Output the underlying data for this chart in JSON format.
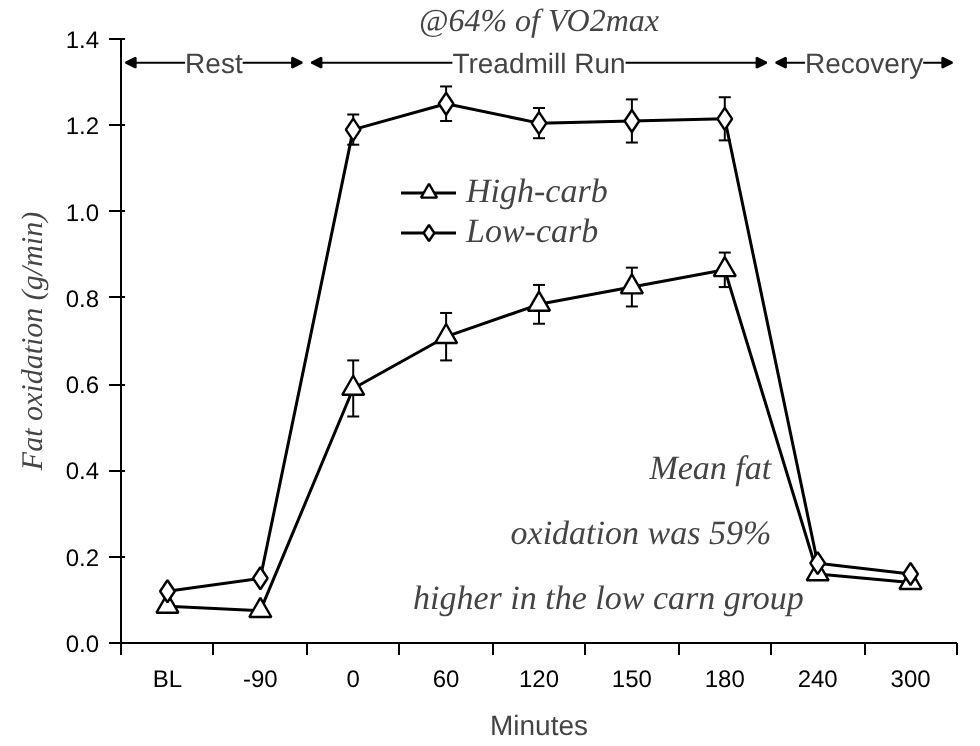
{
  "chart_data": {
    "type": "line",
    "xlabel": "Minutes",
    "ylabel": "Fat oxidation (g/min)",
    "categories": [
      "BL",
      "-90",
      "0",
      "60",
      "120",
      "150",
      "180",
      "240",
      "300"
    ],
    "ylim": [
      0,
      1.4
    ],
    "yticks": [
      {
        "value": 0,
        "label": "0.0"
      },
      {
        "value": 0.2,
        "label": "0.2"
      },
      {
        "value": 0.4,
        "label": "0.4"
      },
      {
        "value": 0.6,
        "label": "0.6"
      },
      {
        "value": 0.8,
        "label": "0.8"
      },
      {
        "value": 1.0,
        "label": "1.0"
      },
      {
        "value": 1.2,
        "label": "1.2"
      },
      {
        "value": 1.4,
        "label": "1.4"
      }
    ],
    "series": [
      {
        "name": "High-carb",
        "color": "#000000",
        "marker": "triangle",
        "values": [
          0.085,
          0.075,
          0.59,
          0.71,
          0.785,
          0.825,
          0.865,
          0.16,
          0.14
        ],
        "errors": [
          null,
          null,
          0.065,
          0.055,
          0.045,
          0.045,
          0.04,
          null,
          null
        ]
      },
      {
        "name": "Low-carb",
        "color": "#000000",
        "marker": "diamond",
        "values": [
          0.12,
          0.15,
          1.19,
          1.25,
          1.205,
          1.21,
          1.215,
          0.185,
          0.16
        ],
        "errors": [
          null,
          null,
          0.035,
          0.04,
          0.035,
          0.05,
          0.05,
          null,
          null
        ]
      }
    ],
    "annotations": [
      "@64% of VO2max",
      "Rest",
      "Treadmill Run",
      "Recovery",
      "Mean fat",
      "oxidation was 59%",
      "higher in the low carn group"
    ],
    "legend": "top left",
    "grid": false,
    "line_style": "solid"
  }
}
